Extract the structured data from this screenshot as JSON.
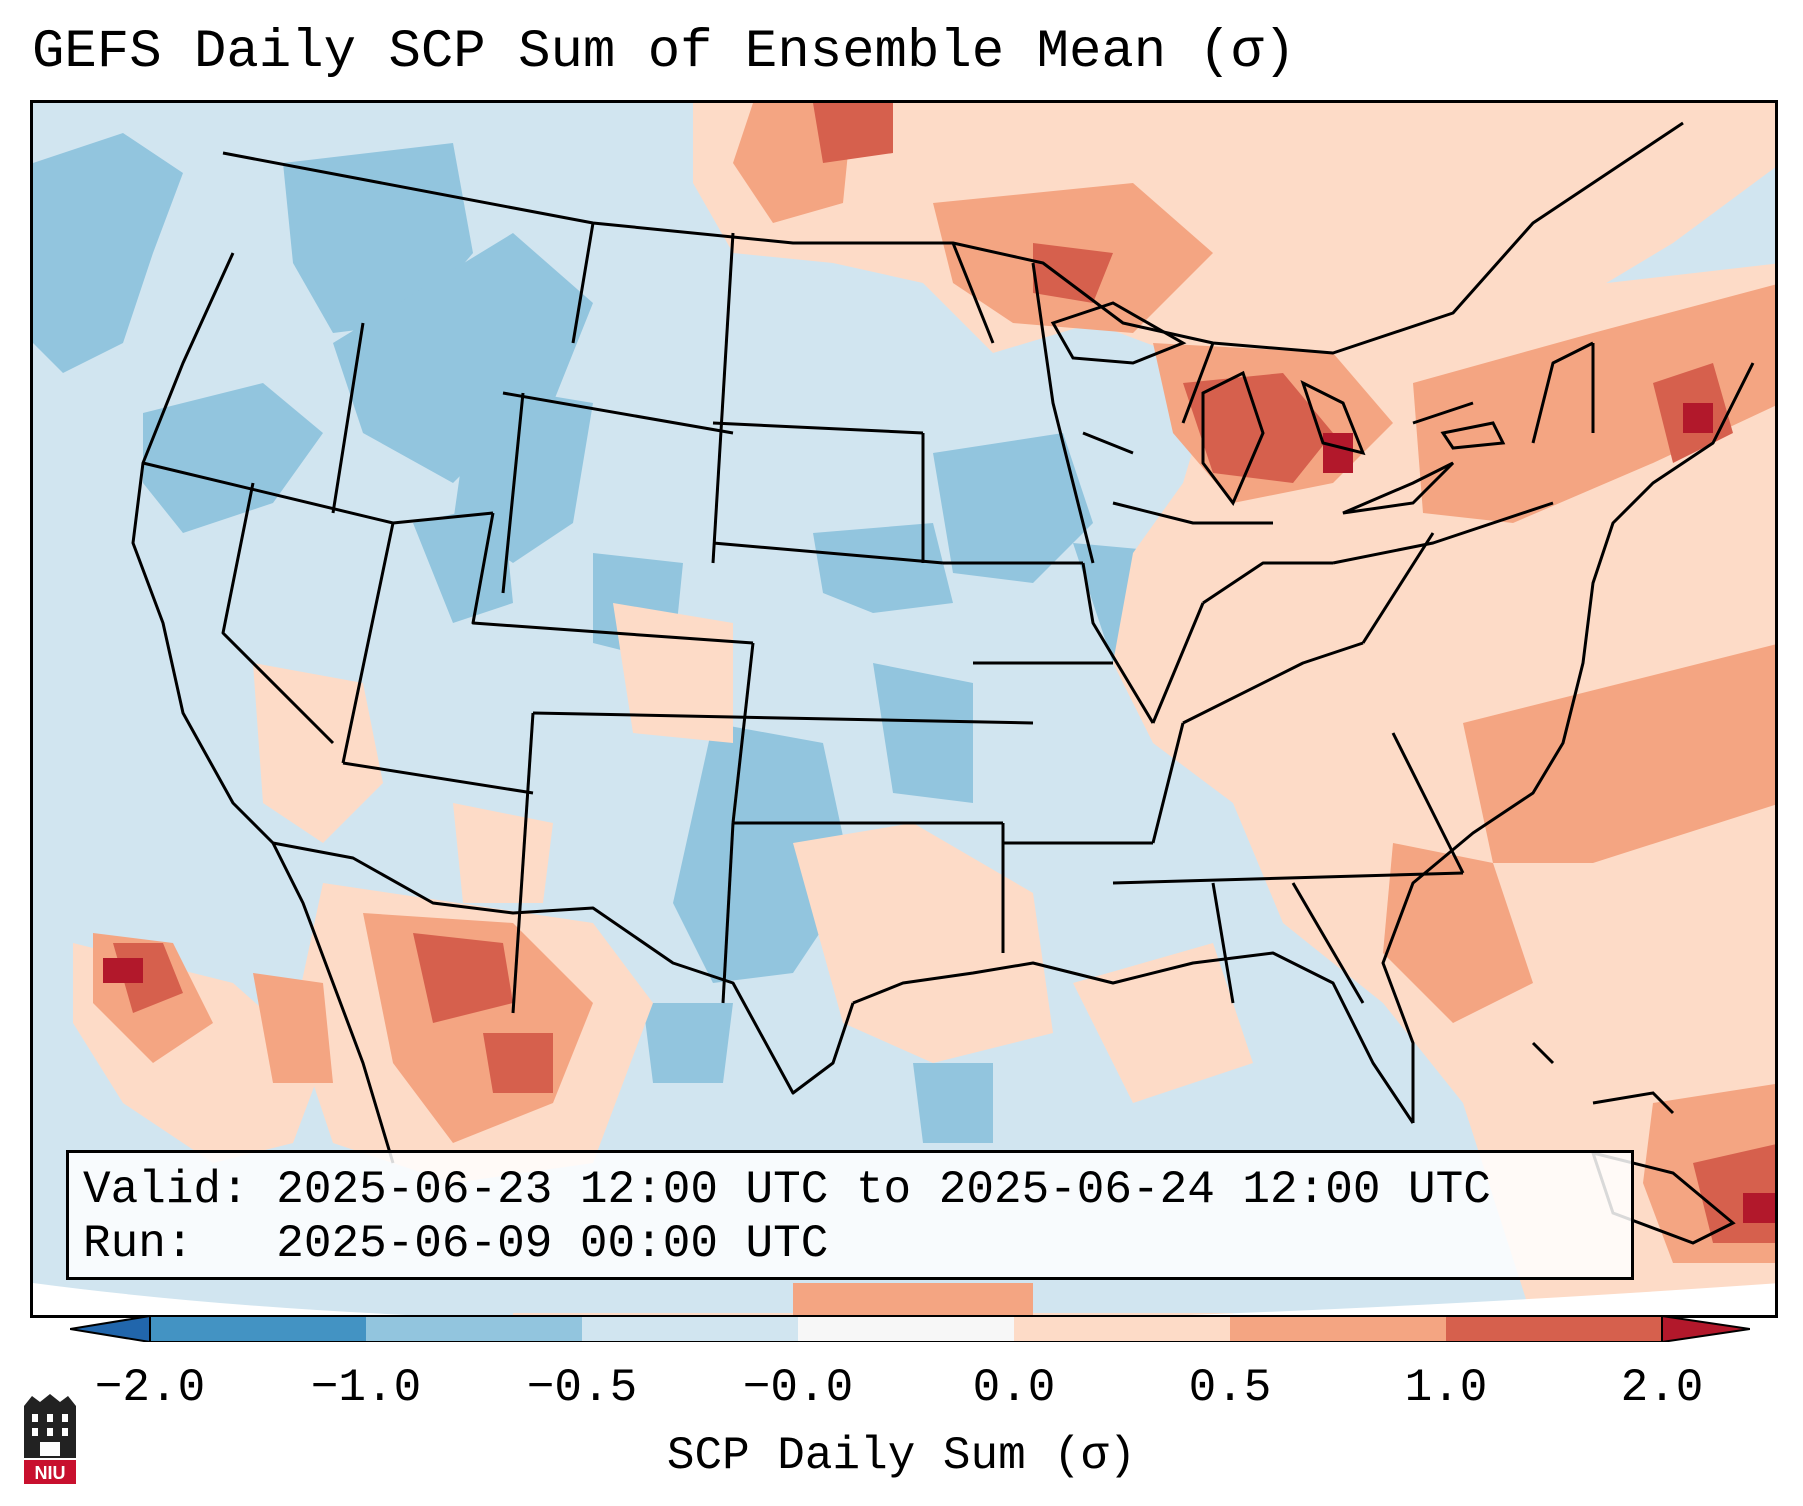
{
  "title": "GEFS Daily SCP Sum of Ensemble Mean (σ)",
  "info": {
    "valid_label": "Valid:",
    "valid_value": "2025-06-23 12:00 UTC to 2025-06-24 12:00 UTC",
    "run_label": "Run:",
    "run_value": "2025-06-09 00:00 UTC"
  },
  "colorbar": {
    "label": "SCP Daily Sum (σ)",
    "ticks": [
      "−2.0",
      "−1.0",
      "−0.5",
      "−0.0",
      "0.0",
      "0.5",
      "1.0",
      "2.0"
    ],
    "colors": [
      "#4393c3",
      "#92c5de",
      "#d1e5f0",
      "#f7f7f7",
      "#fddbc7",
      "#f4a582",
      "#d6604d"
    ],
    "extend_low": "#2166ac",
    "extend_high": "#b2182b"
  },
  "logo": {
    "text": "NIU"
  }
}
